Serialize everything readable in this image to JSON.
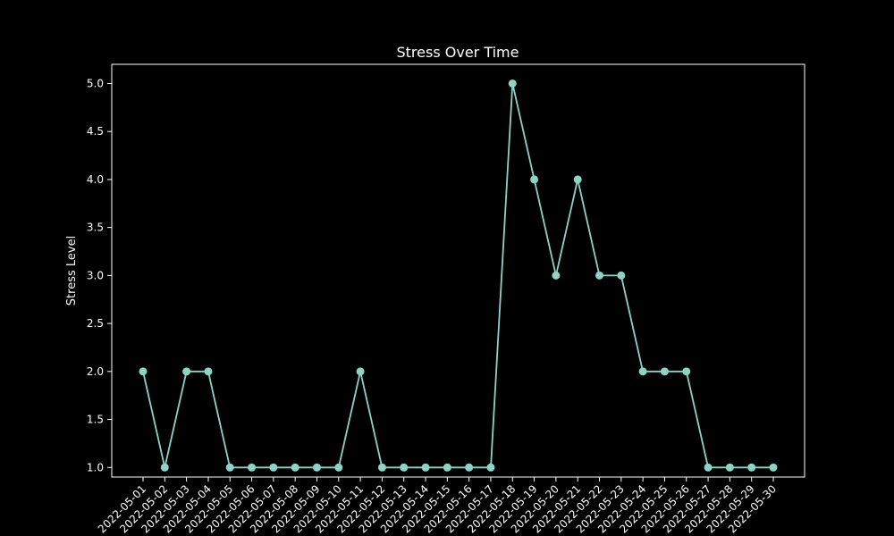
{
  "chart_data": {
    "type": "line",
    "title": "Stress Over Time",
    "xlabel": "",
    "ylabel": "Stress Level",
    "ylim": [
      0.9,
      5.2
    ],
    "yticks": [
      "1.0",
      "1.5",
      "2.0",
      "2.5",
      "3.0",
      "3.5",
      "4.0",
      "4.5",
      "5.0"
    ],
    "grid": false,
    "legend": "none",
    "categories": [
      "2022-05-01",
      "2022-05-02",
      "2022-05-03",
      "2022-05-04",
      "2022-05-05",
      "2022-05-06",
      "2022-05-07",
      "2022-05-08",
      "2022-05-09",
      "2022-05-10",
      "2022-05-11",
      "2022-05-12",
      "2022-05-13",
      "2022-05-14",
      "2022-05-15",
      "2022-05-16",
      "2022-05-17",
      "2022-05-18",
      "2022-05-19",
      "2022-05-20",
      "2022-05-21",
      "2022-05-22",
      "2022-05-23",
      "2022-05-24",
      "2022-05-25",
      "2022-05-26",
      "2022-05-27",
      "2022-05-28",
      "2022-05-29",
      "2022-05-30"
    ],
    "values": [
      2,
      1,
      2,
      2,
      1,
      1,
      1,
      1,
      1,
      1,
      2,
      1,
      1,
      1,
      1,
      1,
      1,
      5,
      4,
      3,
      4,
      3,
      3,
      2,
      2,
      2,
      1,
      1,
      1,
      1
    ],
    "colors": {
      "background": "#000000",
      "axes": "#ffffff",
      "text": "#ffffff",
      "line": "#8dd3c7"
    }
  }
}
